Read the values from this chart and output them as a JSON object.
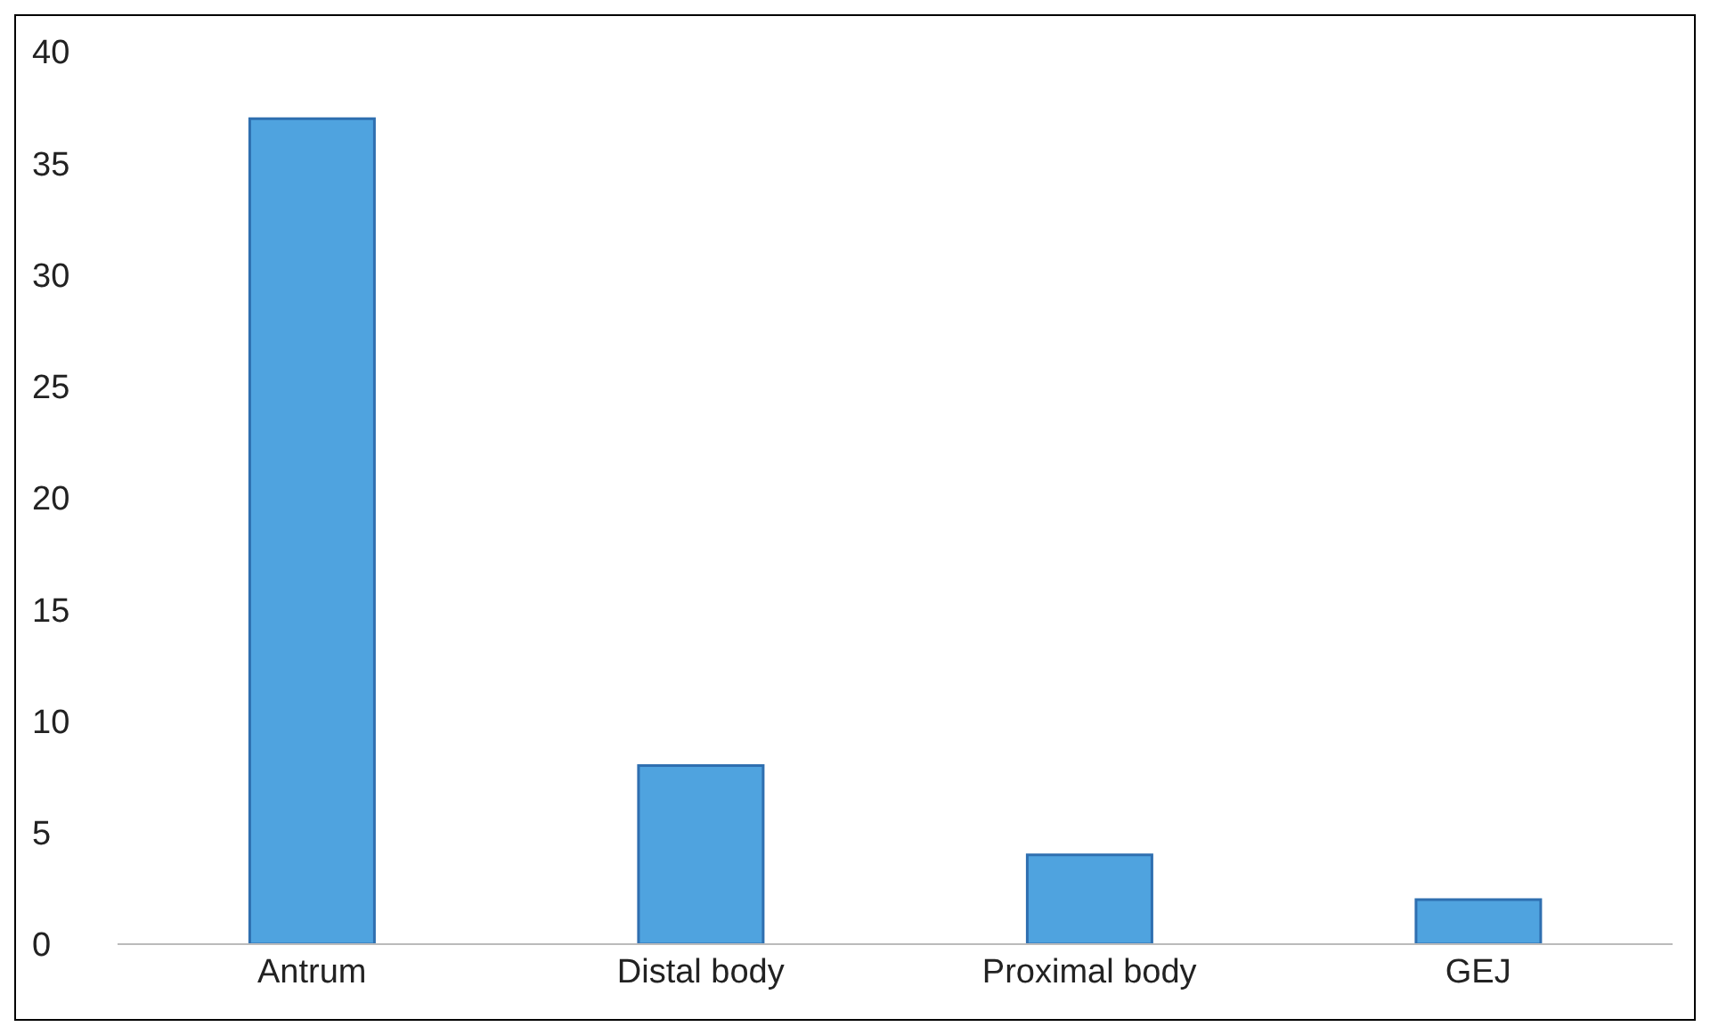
{
  "chart_data": {
    "type": "bar",
    "categories": [
      "Antrum",
      "Distal body",
      "Proximal body",
      "GEJ"
    ],
    "values": [
      37,
      8,
      4,
      2
    ],
    "color": "#4fa3df",
    "ylim": [
      0,
      40
    ],
    "yticks": [
      0,
      5,
      10,
      15,
      20,
      25,
      30,
      35,
      40
    ],
    "grid": false,
    "legend": false
  }
}
